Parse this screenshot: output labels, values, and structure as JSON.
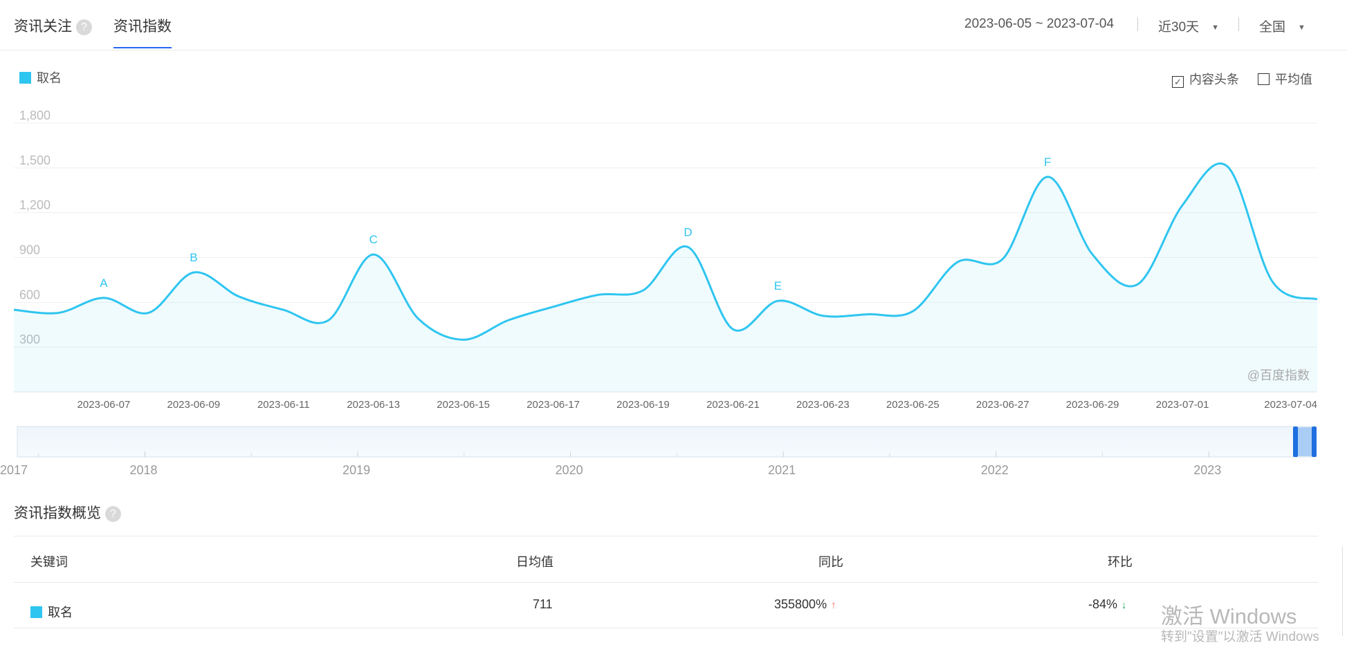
{
  "header": {
    "tab_focus": "资讯关注",
    "tab_index": "资讯指数",
    "help_glyph": "?",
    "date_range": "2023-06-05 ~ 2023-07-04",
    "period": "近30天",
    "region": "全国"
  },
  "legend": {
    "series_name": "取名",
    "color": "#2ec5f0"
  },
  "toggles": {
    "content_headline": {
      "label": "内容头条",
      "checked": true
    },
    "average": {
      "label": "平均值",
      "checked": false
    }
  },
  "watermark": "@百度指数",
  "chart_data": {
    "type": "area",
    "y_ticks": [
      "1,800",
      "1,500",
      "1,200",
      "900",
      "600",
      "300"
    ],
    "x_tick_labels": [
      "2023-06-07",
      "2023-06-09",
      "2023-06-11",
      "2023-06-13",
      "2023-06-15",
      "2023-06-17",
      "2023-06-19",
      "2023-06-21",
      "2023-06-23",
      "2023-06-25",
      "2023-06-27",
      "2023-06-29",
      "2023-07-01",
      "2023-07-04"
    ],
    "ylim": [
      0,
      1800
    ],
    "x": [
      "2023-06-05",
      "2023-06-06",
      "2023-06-07",
      "2023-06-08",
      "2023-06-09",
      "2023-06-10",
      "2023-06-11",
      "2023-06-12",
      "2023-06-13",
      "2023-06-14",
      "2023-06-15",
      "2023-06-16",
      "2023-06-17",
      "2023-06-18",
      "2023-06-19",
      "2023-06-20",
      "2023-06-21",
      "2023-06-22",
      "2023-06-23",
      "2023-06-24",
      "2023-06-25",
      "2023-06-26",
      "2023-06-27",
      "2023-06-28",
      "2023-06-29",
      "2023-06-30",
      "2023-07-01",
      "2023-07-02",
      "2023-07-03",
      "2023-07-04"
    ],
    "series": [
      {
        "name": "取名",
        "values": [
          550,
          530,
          630,
          530,
          800,
          640,
          550,
          480,
          920,
          490,
          350,
          480,
          570,
          650,
          680,
          970,
          420,
          610,
          510,
          520,
          540,
          870,
          890,
          1440,
          920,
          720,
          1250,
          1510,
          740,
          620
        ]
      }
    ],
    "annotations": [
      {
        "label": "A",
        "date": "2023-06-07"
      },
      {
        "label": "B",
        "date": "2023-06-09"
      },
      {
        "label": "C",
        "date": "2023-06-13"
      },
      {
        "label": "D",
        "date": "2023-06-20"
      },
      {
        "label": "E",
        "date": "2023-06-22"
      },
      {
        "label": "F",
        "date": "2023-06-28"
      }
    ],
    "grid": true,
    "legend_position": "top-left"
  },
  "navigator": {
    "years": [
      "2017",
      "2018",
      "2019",
      "2020",
      "2021",
      "2022",
      "2023"
    ]
  },
  "overview": {
    "title": "资讯指数概览",
    "columns": [
      "关键词",
      "日均值",
      "同比",
      "环比"
    ],
    "row": {
      "keyword": "取名",
      "daily_avg": "711",
      "yoy": "355800%",
      "mom": "-84%"
    },
    "up_glyph": "↑",
    "down_glyph": "↓"
  },
  "windows_watermark": {
    "line1": "激活 Windows",
    "line2": "转到\"设置\"以激活 Windows"
  }
}
